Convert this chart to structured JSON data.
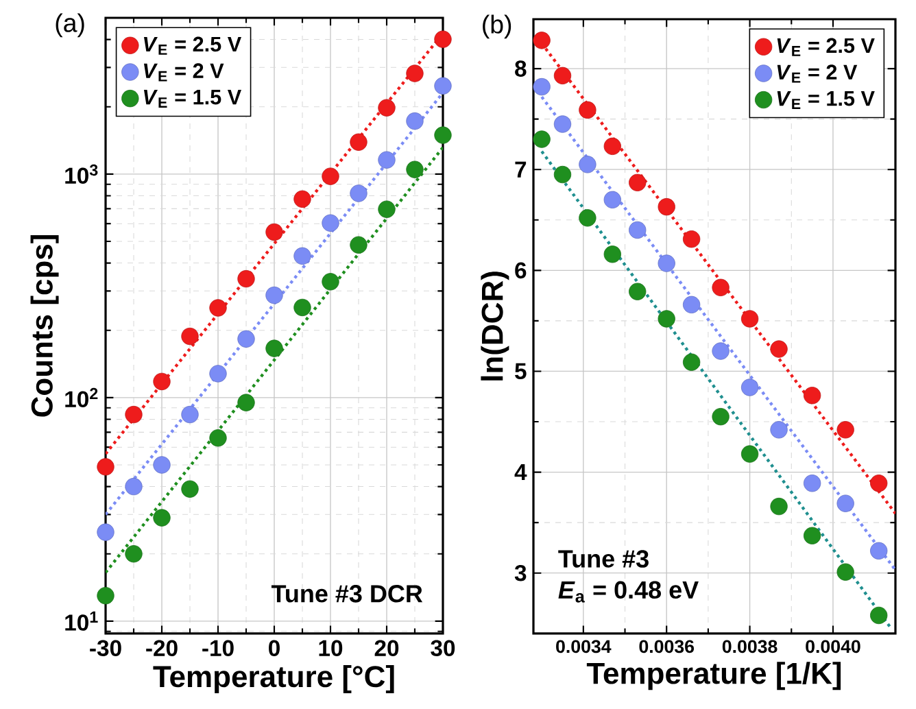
{
  "chart_data": [
    {
      "type": "scatter",
      "title": "(a)",
      "xlabel": "Temperature [°C]",
      "ylabel": "Counts [cps]",
      "x": [
        -30,
        -25,
        -20,
        -15,
        -10,
        -5,
        0,
        5,
        10,
        15,
        20,
        25,
        30
      ],
      "series": [
        {
          "name": "*V*$_{E}$ = 2.5 V",
          "color": "#ee1c1c",
          "values": [
            49,
            84,
            118,
            188,
            252,
            340,
            550,
            773,
            977,
            1390,
            1980,
            2820,
            4010
          ]
        },
        {
          "name": "*V*$_{E}$ = 2 V",
          "color": "#7b8cf5",
          "values": [
            25,
            40,
            50,
            84,
            128,
            183,
            287,
            430,
            604,
            820,
            1157,
            1726,
            2480
          ]
        },
        {
          "name": "*V*$_{E}$ = 1.5 V",
          "color": "#1f8f1f",
          "values": [
            13,
            20,
            29,
            39,
            66,
            95,
            166,
            253,
            330,
            482,
            696,
            1048,
            1493
          ]
        },
        {
          "type": "line",
          "color": "#ee1c1c",
          "line_style": "dotted",
          "marker": "none",
          "x": [
            -30,
            30
          ],
          "values": [
            56,
            4260
          ]
        },
        {
          "type": "line",
          "color": "#7b8cf5",
          "line_style": "dotted",
          "marker": "none",
          "x": [
            -30,
            30
          ],
          "values": [
            30,
            2310
          ]
        },
        {
          "type": "line",
          "color": "#1f8f1f",
          "line_style": "dotted",
          "marker": "none",
          "x": [
            -30,
            30
          ],
          "values": [
            16.5,
            1315
          ]
        }
      ],
      "xlim": [
        -30,
        30
      ],
      "ylim": [
        8.8,
        5000
      ],
      "xticks": [
        -30,
        -20,
        -10,
        0,
        10,
        20,
        30
      ],
      "yticks": [
        {
          "value": 10,
          "label": "10$^{1}$"
        },
        {
          "value": 100,
          "label": "10$^{2}$"
        },
        {
          "value": 1000,
          "label": "10$^{3}$"
        }
      ],
      "log": "y",
      "grid": true,
      "legend": "top left",
      "marker": "circle",
      "annotations": [
        "Tune #3 DCR"
      ]
    },
    {
      "type": "scatter",
      "title": "(b)",
      "xlabel": "Temperature [1/K]",
      "ylabel": "ln(DCR)",
      "x": [
        0.0033,
        0.00335,
        0.00341,
        0.00347,
        0.00353,
        0.0036,
        0.00366,
        0.00373,
        0.0038,
        0.00387,
        0.00395,
        0.00403,
        0.00411
      ],
      "series": [
        {
          "name": "*V*$_{E}$ = 2.5 V",
          "color": "#ee1c1c",
          "values": [
            8.28,
            7.93,
            7.59,
            7.23,
            6.87,
            6.63,
            6.31,
            5.83,
            5.52,
            5.22,
            4.76,
            4.42,
            3.89
          ]
        },
        {
          "name": "*V*$_{E}$ = 2 V",
          "color": "#7b8cf5",
          "values": [
            7.82,
            7.45,
            7.05,
            6.7,
            6.4,
            6.07,
            5.66,
            5.2,
            4.84,
            4.42,
            3.89,
            3.69,
            3.22
          ]
        },
        {
          "name": "*V*$_{E}$ = 1.5 V",
          "color": "#1f8f1f",
          "values": [
            7.3,
            6.95,
            6.52,
            6.16,
            5.79,
            5.52,
            5.09,
            4.55,
            4.18,
            3.66,
            3.37,
            3.01,
            2.58
          ]
        },
        {
          "type": "line",
          "color": "#ee1c1c",
          "line_style": "dotted",
          "marker": "none",
          "x": [
            0.0033,
            0.00415
          ],
          "values": [
            8.25,
            3.59
          ]
        },
        {
          "type": "line",
          "color": "#7b8cf5",
          "line_style": "dotted",
          "marker": "none",
          "x": [
            0.0033,
            0.00415
          ],
          "values": [
            7.72,
            3.03
          ]
        },
        {
          "type": "line",
          "color": "#1f8f8f",
          "line_style": "dotted",
          "marker": "none",
          "x": [
            0.0033,
            0.00414
          ],
          "values": [
            7.18,
            2.45
          ]
        }
      ],
      "xlim": [
        0.00328,
        0.00415
      ],
      "ylim": [
        2.4,
        8.49
      ],
      "xticks": [
        0.0034,
        0.0036,
        0.0038,
        {
          "value": 0.004,
          "label": "0.0040"
        }
      ],
      "yticks": [
        3,
        4,
        5,
        6,
        7,
        8
      ],
      "grid": true,
      "legend": "top right",
      "marker": "circle",
      "annotations": [
        "Tune #3",
        "*E*$_{a}$ = 0.48 eV"
      ]
    }
  ]
}
